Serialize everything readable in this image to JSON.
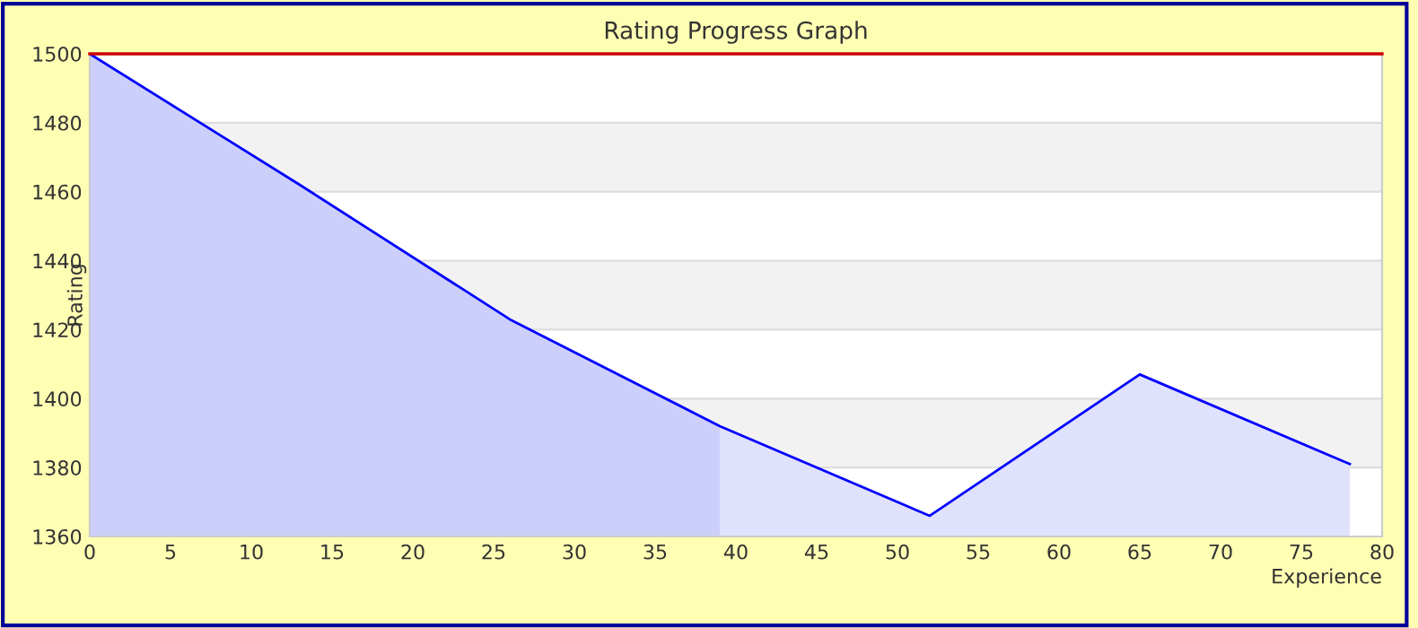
{
  "chart_data": {
    "type": "area",
    "title": "Rating Progress Graph",
    "xlabel": "Experience",
    "ylabel": "Rating",
    "series": [
      {
        "color": "#cdcffb",
        "x": [
          0,
          13,
          26,
          39
        ],
        "values": [
          1500,
          1462,
          1423,
          1392
        ]
      },
      {
        "color": "#e0e1fc",
        "x": [
          39,
          52,
          65,
          78
        ],
        "values": [
          1392,
          1366,
          1407,
          1381
        ]
      },
      {
        "type": "line",
        "color": "#0000ff",
        "x": [
          0,
          13,
          26,
          39,
          52,
          65,
          78
        ],
        "values": [
          1500,
          1462,
          1423,
          1392,
          1366,
          1407,
          1381
        ]
      }
    ],
    "xlim": [
      0,
      80
    ],
    "xticks": [
      0,
      5,
      10,
      15,
      20,
      25,
      30,
      35,
      40,
      45,
      50,
      55,
      60,
      65,
      70,
      75,
      80
    ],
    "ylim": [
      1360,
      1500
    ],
    "yticks": [
      1360,
      1380,
      1400,
      1420,
      1440,
      1460,
      1480,
      1500
    ],
    "ref_lines": [
      {
        "axis": "y",
        "value": 1500,
        "label": null,
        "color": "#cc0000"
      }
    ],
    "grid": "y",
    "legend": false,
    "marker": "none",
    "line_style": "solid"
  }
}
